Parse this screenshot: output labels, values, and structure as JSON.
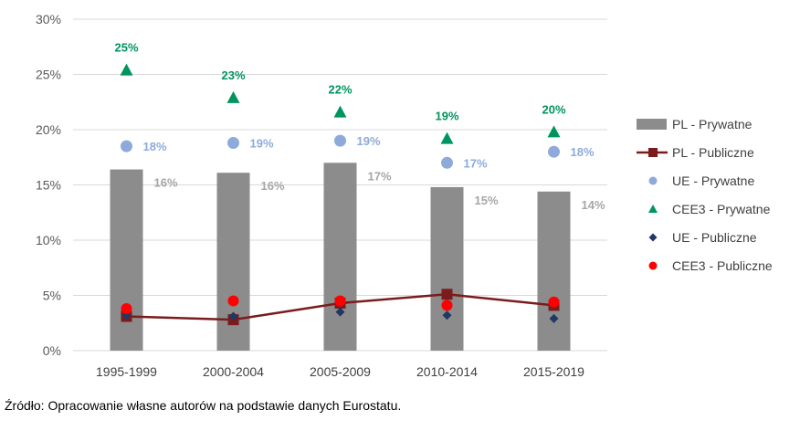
{
  "chart_data": {
    "type": "bar",
    "categories": [
      "1995-1999",
      "2000-2004",
      "2005-2009",
      "2010-2014",
      "2015-2019"
    ],
    "ylim": [
      0,
      30
    ],
    "yticks": [
      "0%",
      "5%",
      "10%",
      "15%",
      "20%",
      "25%",
      "30%"
    ],
    "grid": true,
    "legend_position": "right",
    "series": [
      {
        "name": "PL - Prywatne",
        "type": "bar",
        "color": "#8c8c8c",
        "values": [
          16.4,
          16.1,
          17.0,
          14.8,
          14.4
        ],
        "labels": [
          "16%",
          "16%",
          "17%",
          "15%",
          "14%"
        ]
      },
      {
        "name": "PL - Publiczne",
        "type": "line",
        "color": "#7b1c1c",
        "values": [
          3.1,
          2.8,
          4.3,
          5.1,
          4.1
        ]
      },
      {
        "name": "UE - Prywatne",
        "type": "scatter",
        "marker": "circle",
        "color": "#8eaadb",
        "values": [
          18.5,
          18.8,
          19.0,
          17.0,
          18.0
        ],
        "labels": [
          "18%",
          "19%",
          "19%",
          "17%",
          "18%"
        ]
      },
      {
        "name": "CEE3 - Prywatne",
        "type": "scatter",
        "marker": "triangle",
        "color": "#00945e",
        "values": [
          25.4,
          22.9,
          21.6,
          19.2,
          19.8
        ],
        "labels": [
          "25%",
          "23%",
          "22%",
          "19%",
          "20%"
        ]
      },
      {
        "name": "UE - Publiczne",
        "type": "scatter",
        "marker": "diamond",
        "color": "#1f3864",
        "values": [
          3.2,
          3.1,
          3.5,
          3.2,
          2.9
        ]
      },
      {
        "name": "CEE3 - Publiczne",
        "type": "scatter",
        "marker": "circle",
        "color": "#ff0000",
        "values": [
          3.8,
          4.5,
          4.5,
          4.1,
          4.4
        ]
      }
    ]
  },
  "source_note": "Źródło: Opracowanie własne autorów na podstawie danych Eurostatu."
}
